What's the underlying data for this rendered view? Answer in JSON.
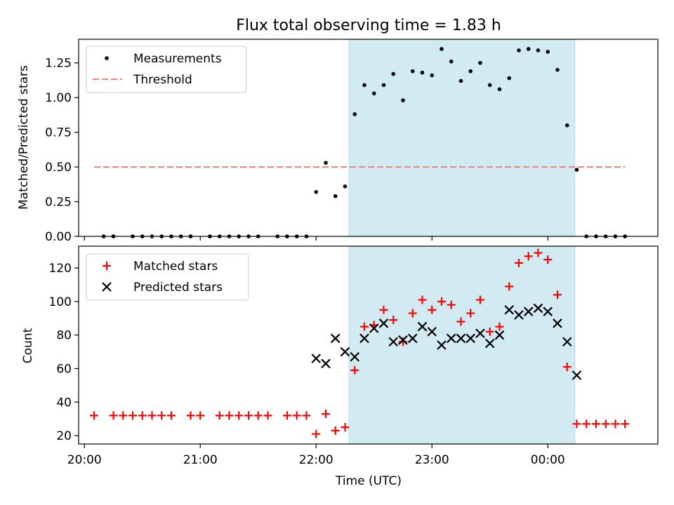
{
  "chart_data": [
    {
      "type": "scatter",
      "title": "Flux total observing time = 1.83 h",
      "xlabel": "",
      "ylabel": "Matched/Predicted stars",
      "ylim": [
        0,
        1.42
      ],
      "yticks": [
        "0.00",
        "0.25",
        "0.50",
        "0.75",
        "1.00",
        "1.25"
      ],
      "xaxis": "time (hours from 20:00 UTC)",
      "shaded_region": [
        "22:17",
        "00:14"
      ],
      "shade_color": "#add8e6",
      "threshold": {
        "name": "Threshold",
        "value": 0.5,
        "x_range": [
          "20:05",
          "00:40"
        ],
        "color": "#ff7f7f"
      },
      "series": [
        {
          "name": "Measurements",
          "marker": "dot",
          "color": "#000000",
          "x": [
            "20:05",
            "20:10",
            "20:15",
            "20:20",
            "20:25",
            "20:30",
            "20:35",
            "20:40",
            "20:45",
            "20:50",
            "20:55",
            "21:00",
            "21:05",
            "21:10",
            "21:15",
            "21:20",
            "21:25",
            "21:30",
            "21:35",
            "21:40",
            "21:45",
            "21:50",
            "21:55",
            "22:00",
            "22:05",
            "22:10",
            "22:15",
            "22:20",
            "22:25",
            "22:30",
            "22:35",
            "22:40",
            "22:45",
            "22:50",
            "22:55",
            "23:00",
            "23:05",
            "23:10",
            "23:15",
            "23:20",
            "23:25",
            "23:30",
            "23:35",
            "23:40",
            "23:45",
            "23:50",
            "23:55",
            "00:00",
            "00:05",
            "00:10",
            "00:15",
            "00:20",
            "00:25",
            "00:30",
            "00:35",
            "00:40"
          ],
          "values": [
            null,
            0,
            0,
            null,
            0,
            0,
            0,
            0,
            0,
            0,
            0,
            null,
            0,
            0,
            0,
            0,
            0,
            0,
            null,
            0,
            0,
            0,
            0,
            0.32,
            0.53,
            0.29,
            0.36,
            0.88,
            1.09,
            1.03,
            1.09,
            1.17,
            0.98,
            1.19,
            1.18,
            1.16,
            1.35,
            1.26,
            1.12,
            1.19,
            1.25,
            1.09,
            1.06,
            1.14,
            1.34,
            1.35,
            1.34,
            1.33,
            1.2,
            0.8,
            0.48,
            0,
            0,
            0,
            0,
            0
          ]
        }
      ]
    },
    {
      "type": "scatter",
      "title": "",
      "xlabel": "Time (UTC)",
      "ylabel": "Count",
      "ylim": [
        15,
        133
      ],
      "yticks": [
        "20",
        "40",
        "60",
        "80",
        "100",
        "120"
      ],
      "xticks": [
        "20:00",
        "21:00",
        "22:00",
        "23:00",
        "00:00"
      ],
      "shaded_region": [
        "22:17",
        "00:14"
      ],
      "series": [
        {
          "name": "Matched stars",
          "marker": "plus",
          "color": "#ff0000",
          "x": [
            "20:05",
            "20:10",
            "20:15",
            "20:20",
            "20:25",
            "20:30",
            "20:35",
            "20:40",
            "20:45",
            "20:50",
            "20:55",
            "21:00",
            "21:05",
            "21:10",
            "21:15",
            "21:20",
            "21:25",
            "21:30",
            "21:35",
            "21:40",
            "21:45",
            "21:50",
            "21:55",
            "22:00",
            "22:05",
            "22:10",
            "22:15",
            "22:20",
            "22:25",
            "22:30",
            "22:35",
            "22:40",
            "22:45",
            "22:50",
            "22:55",
            "23:00",
            "23:05",
            "23:10",
            "23:15",
            "23:20",
            "23:25",
            "23:30",
            "23:35",
            "23:40",
            "23:45",
            "23:50",
            "23:55",
            "00:00",
            "00:05",
            "00:10",
            "00:15",
            "00:20",
            "00:25",
            "00:30",
            "00:35",
            "00:40"
          ],
          "values": [
            32,
            null,
            32,
            32,
            32,
            32,
            32,
            32,
            32,
            null,
            32,
            32,
            null,
            32,
            32,
            32,
            32,
            32,
            32,
            null,
            32,
            32,
            32,
            21,
            33,
            23,
            25,
            59,
            85,
            86,
            95,
            89,
            76,
            93,
            101,
            95,
            100,
            98,
            88,
            93,
            101,
            82,
            85,
            109,
            123,
            127,
            129,
            125,
            104,
            61,
            27,
            27,
            27,
            27,
            27,
            27
          ]
        },
        {
          "name": "Predicted stars",
          "marker": "x",
          "color": "#000000",
          "x": [
            "22:00",
            "22:05",
            "22:10",
            "22:15",
            "22:20",
            "22:25",
            "22:30",
            "22:35",
            "22:40",
            "22:45",
            "22:50",
            "22:55",
            "23:00",
            "23:05",
            "23:10",
            "23:15",
            "23:20",
            "23:25",
            "23:30",
            "23:35",
            "23:40",
            "23:45",
            "23:50",
            "23:55",
            "00:00",
            "00:05",
            "00:10",
            "00:15"
          ],
          "values": [
            66,
            63,
            78,
            70,
            67,
            78,
            84,
            87,
            76,
            77,
            78,
            85,
            82,
            74,
            78,
            78,
            78,
            81,
            75,
            80,
            95,
            92,
            94,
            96,
            94,
            87,
            76,
            56
          ]
        }
      ]
    }
  ]
}
